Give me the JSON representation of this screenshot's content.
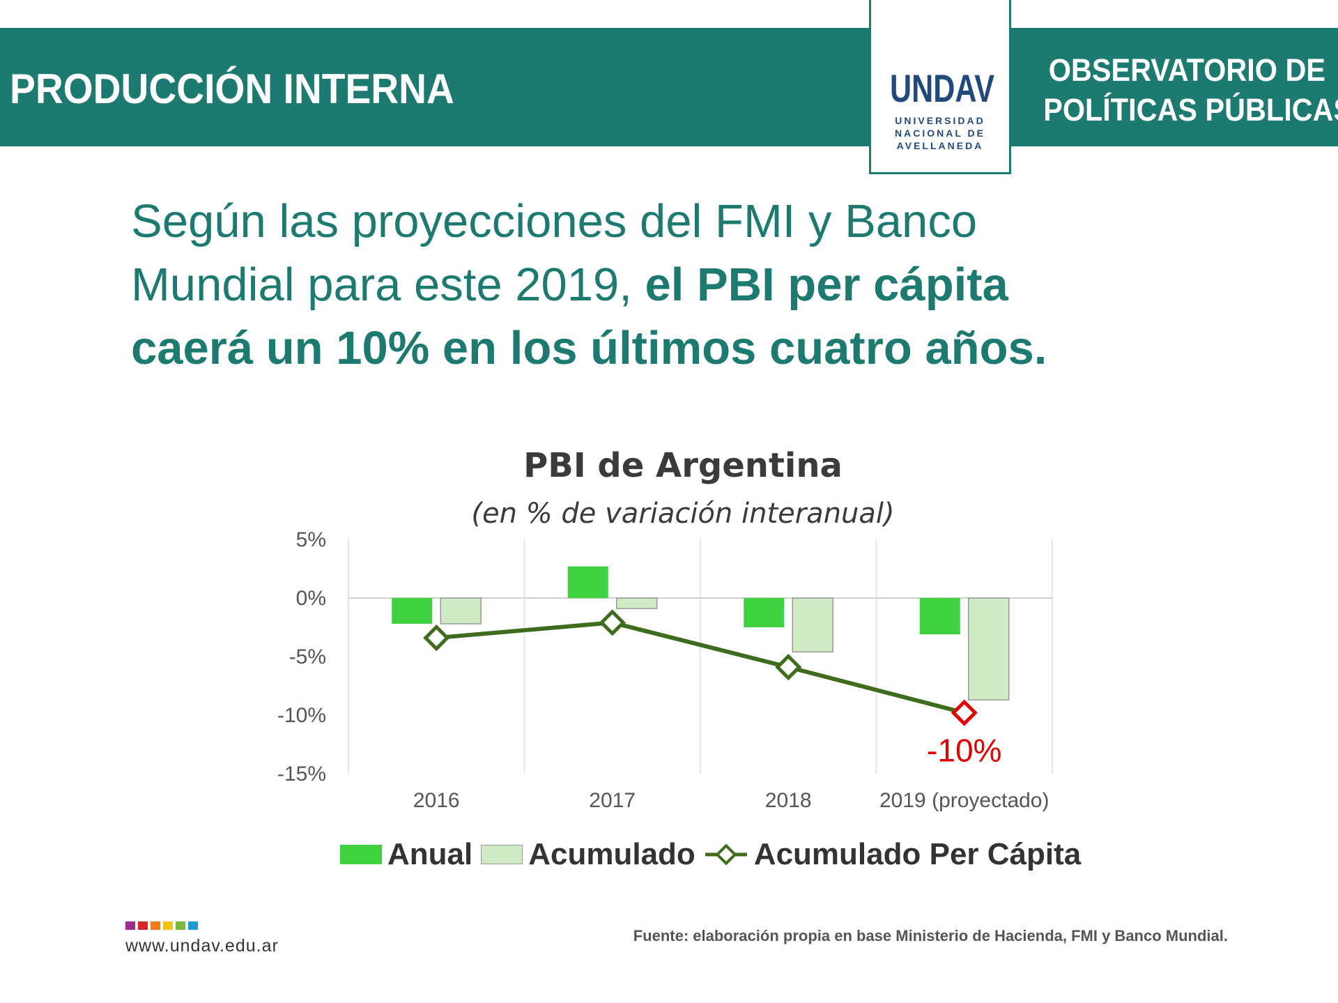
{
  "header": {
    "section_title": "PRODUCCIÓN INTERNA",
    "observatorio_line1": "OBSERVATORIO DE",
    "observatorio_line2": "POLÍTICAS PÚBLICAS",
    "logo_text": "UNDAV",
    "logo_line1": "UNIVERSIDAD",
    "logo_line2": "NACIONAL DE",
    "logo_line3": "AVELLANEDA"
  },
  "headline": {
    "line1": "Según las proyecciones del FMI y Banco",
    "line2_plain": "Mundial para este 2019, ",
    "line2_bold": "el PBI per cápita",
    "line3_bold": "caerá un 10% en los últimos cuatro años."
  },
  "chart_data": {
    "type": "bar",
    "title": "PBI de Argentina",
    "subtitle": "(en % de variación interanual)",
    "categories": [
      "2016",
      "2017",
      "2018",
      "2019 (proyectado)"
    ],
    "y_ticks": [
      "5%",
      "0%",
      "-5%",
      "-10%",
      "-15%"
    ],
    "ylim": [
      -15,
      5
    ],
    "grid": "vertical separators",
    "series": [
      {
        "name": "Anual",
        "kind": "bar",
        "color": "#3fd13f",
        "values": [
          -2.2,
          2.7,
          -2.5,
          -3.1
        ]
      },
      {
        "name": "Acumulado",
        "kind": "bar",
        "color": "#cfeac4",
        "values": [
          -2.2,
          -0.9,
          -4.6,
          -8.7
        ]
      },
      {
        "name": "Acumulado Per Cápita",
        "kind": "line",
        "color": "#3e6b1c",
        "values": [
          -3.4,
          -2.1,
          -5.9,
          -9.8
        ]
      }
    ],
    "annotation": {
      "text": "-10%",
      "color": "#e00000",
      "category_index": 3
    },
    "highlight_marker_color": "#e00000",
    "legend_position": "bottom"
  },
  "footer": {
    "url": "www.undav.edu.ar",
    "source": "Fuente: elaboración propia en base Ministerio de Hacienda, FMI y Banco Mundial.",
    "strip_colors": [
      "#9c2a8e",
      "#d9222a",
      "#f07c1c",
      "#f3c214",
      "#7ab940",
      "#1e9bd7"
    ]
  },
  "colors": {
    "teal": "#1c7a70",
    "navy": "#21497d"
  }
}
